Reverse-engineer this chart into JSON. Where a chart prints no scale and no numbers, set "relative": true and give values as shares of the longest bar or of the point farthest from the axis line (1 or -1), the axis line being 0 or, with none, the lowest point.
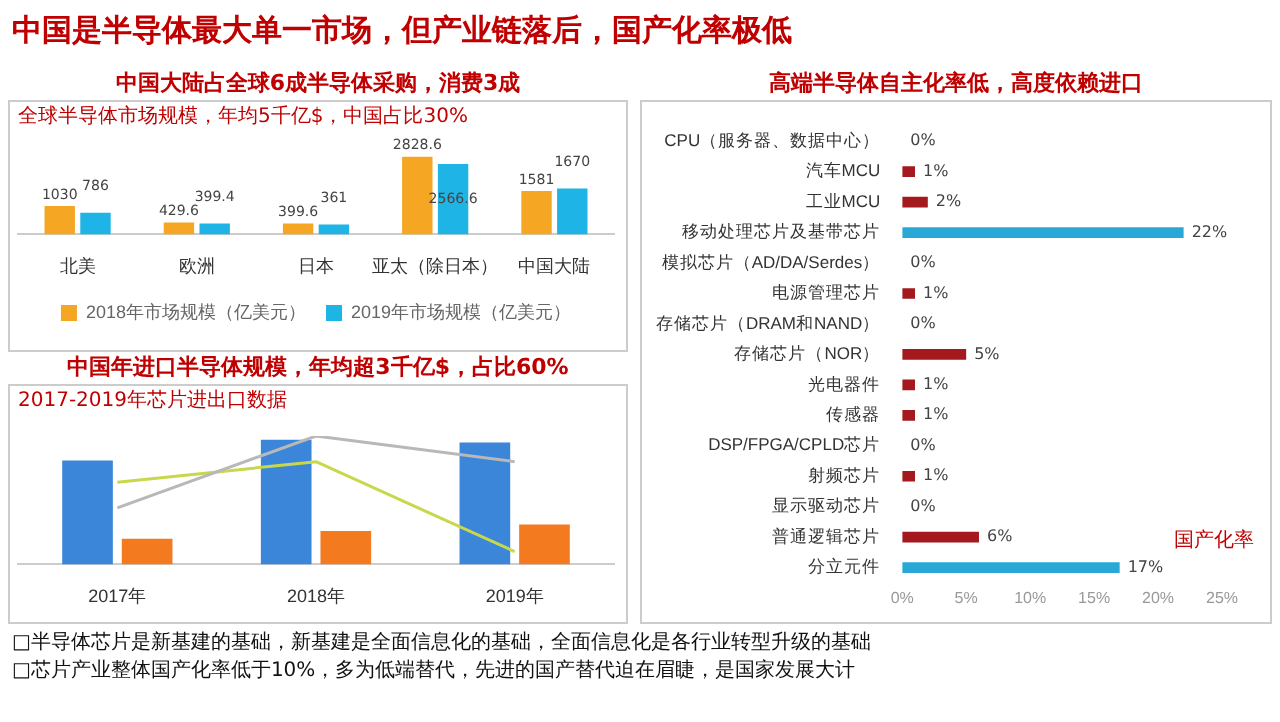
{
  "chart_data": [
    {
      "type": "other",
      "title": "中国是半导体最大单一市场，但产业链落后，国产化率极低",
      "annotations": [
        "□半导体芯片是新基建的基础，新基建是全面信息化的基础，全面信息化是各行业转型升级的基础",
        "□芯片产业整体国产化率低于10%，多为低端替代，先进的国产替代迫在眉睫，是国家发展大计"
      ]
    },
    {
      "type": "bar",
      "title": "中国大陆占全球6成半导体采购，消费3成",
      "subtitle": "全球半导体市场规模，年均5千亿$，中国占比30%",
      "categories": [
        "北美",
        "欧洲",
        "日本",
        "亚太（除日本）",
        "中国大陆"
      ],
      "series": [
        {
          "name": "2018年市场规模（亿美元）",
          "color": "#f5a623",
          "values": [
            1030,
            429.6,
            399.6,
            2828.6,
            1581
          ],
          "value_labels": [
            "1030",
            "429.6",
            "399.6",
            "2828.6",
            "1581"
          ]
        },
        {
          "name": "2019年市场规模（亿美元）",
          "color": "#1eb4e6",
          "values": [
            786,
            399.4,
            361,
            2566.6,
            1670
          ],
          "value_labels": [
            "786",
            "399.4",
            "361",
            "2566.6",
            "1670"
          ]
        }
      ],
      "legend": "bottom",
      "grid": false
    },
    {
      "type": "bar",
      "relative": true,
      "title": "中国年进口半导体规模，年均超3千亿$，占比60%",
      "subtitle": "2017-2019年芯片进出口数据",
      "categories": [
        "2017年",
        "2018年",
        "2019年"
      ],
      "series": [
        {
          "color": "#3b86d8",
          "values": [
            0.81,
            0.97,
            0.95
          ]
        },
        {
          "color": "#f47a20",
          "values": [
            0.2,
            0.26,
            0.31
          ]
        },
        {
          "type": "line",
          "color": "#b8b8b8",
          "values": [
            0.44,
            1,
            0.8
          ]
        },
        {
          "type": "line",
          "color": "#c8d84a",
          "values": [
            0.64,
            0.8,
            0.1
          ]
        }
      ],
      "grid": false
    },
    {
      "type": "bar",
      "orientation": "horizontal",
      "title": "高端半导体自主化率低，高度依赖进口",
      "categories": [
        "CPU（服务器、数据中心）",
        "汽车MCU",
        "工业MCU",
        "移动处理芯片及基带芯片",
        "模拟芯片（AD/DA/Serdes）",
        "电源管理芯片",
        "存储芯片（DRAM和NAND）",
        "存储芯片（NOR）",
        "光电器件",
        "传感器",
        "DSP/FPGA/CPLD芯片",
        "射频芯片",
        "显示驱动芯片",
        "普通逻辑芯片",
        "分立元件"
      ],
      "values": [
        0,
        1,
        2,
        22,
        0,
        1,
        0,
        5,
        1,
        1,
        0,
        1,
        0,
        6,
        17
      ],
      "colors": [
        "#a3191e",
        "#a3191e",
        "#a3191e",
        "#29a8d8",
        "#a3191e",
        "#a3191e",
        "#a3191e",
        "#a3191e",
        "#a3191e",
        "#a3191e",
        "#a3191e",
        "#a3191e",
        "#a3191e",
        "#a3191e",
        "#29a8d8"
      ],
      "value_labels": [
        "0%",
        "1%",
        "2%",
        "22%",
        "0%",
        "1%",
        "0%",
        "5%",
        "1%",
        "1%",
        "0%",
        "1%",
        "0%",
        "6%",
        "17%"
      ],
      "xlim": [
        0,
        25
      ],
      "xticks": [
        {
          "value": 0,
          "label": "0%"
        },
        {
          "value": 5,
          "label": "5%"
        },
        {
          "value": 10,
          "label": "10%"
        },
        {
          "value": 15,
          "label": "15%"
        },
        {
          "value": 20,
          "label": "20%"
        },
        {
          "value": 25,
          "label": "25%"
        }
      ],
      "grid": false,
      "annotations": [
        "国产化率"
      ]
    }
  ]
}
